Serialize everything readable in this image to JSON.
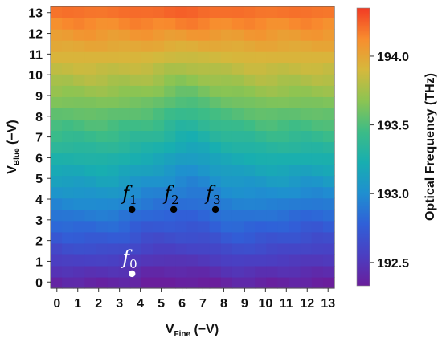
{
  "chart_data": {
    "type": "heatmap",
    "title": "",
    "x_tick_labels": [
      "0",
      "1",
      "2",
      "3",
      "4",
      "5",
      "6",
      "7",
      "8",
      "9",
      "10",
      "11",
      "12",
      "13"
    ],
    "y_tick_labels": [
      "0",
      "1",
      "2",
      "3",
      "4",
      "5",
      "6",
      "7",
      "8",
      "9",
      "10",
      "11",
      "12",
      "13"
    ],
    "xlabel": {
      "main": "V",
      "sub": "Fine",
      "suffix": " (−V)"
    },
    "ylabel": {
      "main": "V",
      "sub": "Blue",
      "suffix": " (−V)"
    },
    "xlim": [
      -0.3,
      13.3
    ],
    "ylim": [
      -0.3,
      13.3
    ],
    "colorbar": {
      "label": "Optical Frequency (THz)",
      "range": [
        192.33,
        194.35
      ],
      "ticks": [
        {
          "value": 192.5,
          "label": "192.5"
        },
        {
          "value": 193.0,
          "label": "193.0"
        },
        {
          "value": 193.5,
          "label": "193.5"
        },
        {
          "value": 194.0,
          "label": "194.0"
        }
      ],
      "stops": [
        "#6a1e9c",
        "#4a3fc2",
        "#3060d8",
        "#1f8fd0",
        "#18aeb0",
        "#3dbc86",
        "#8cc452",
        "#d6b83c",
        "#f88d2e",
        "#f23a24"
      ]
    },
    "grid_resolution": 25,
    "field_description": "frequency rises with V_Blue; local dips near V_Fine 5-8",
    "points": [
      {
        "name": "f",
        "sub": "0",
        "x": 3.6,
        "y": 0.4,
        "color": "#ffffff"
      },
      {
        "name": "f",
        "sub": "1",
        "x": 3.6,
        "y": 3.5,
        "color": "#000000"
      },
      {
        "name": "f",
        "sub": "2",
        "x": 5.6,
        "y": 3.5,
        "color": "#000000"
      },
      {
        "name": "f",
        "sub": "3",
        "x": 7.6,
        "y": 3.5,
        "color": "#000000"
      }
    ]
  }
}
